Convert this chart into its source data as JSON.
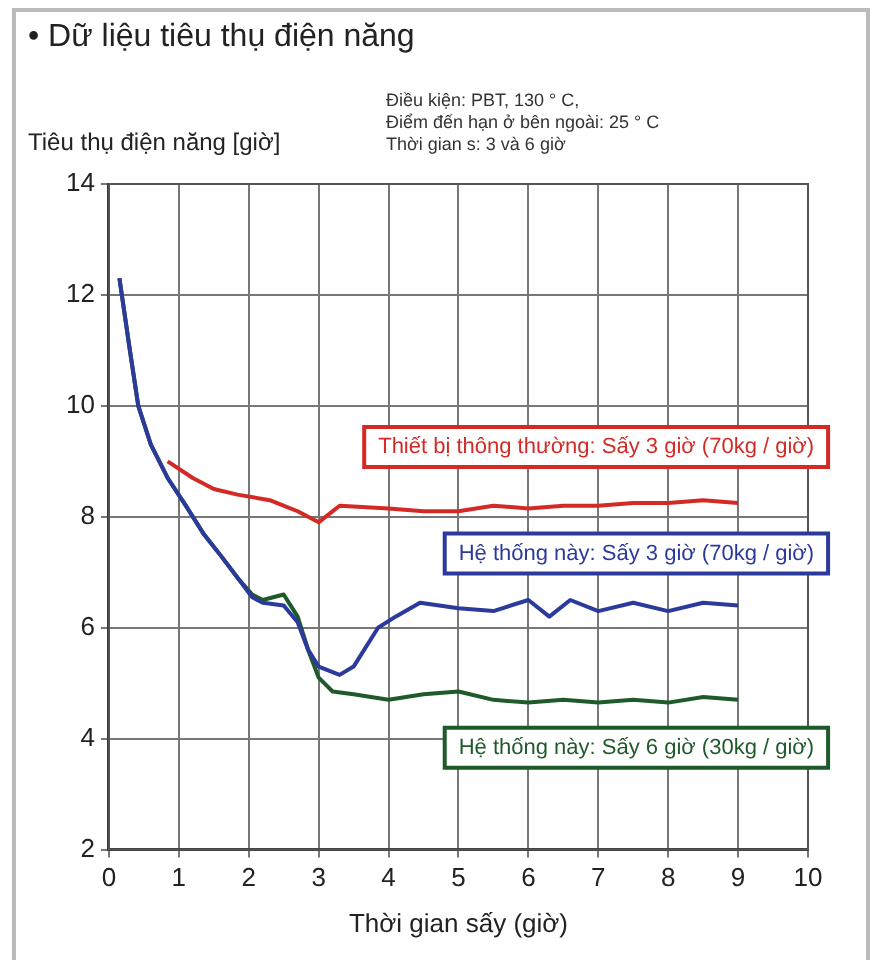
{
  "chart_data": {
    "type": "line",
    "title": "• Dữ liệu tiêu thụ điện năng",
    "ylabel": "Tiêu thụ điện năng [giờ]",
    "xlabel": "Thời gian sấy (giờ)",
    "annotations": [
      "Điều kiện: PBT, 130 ° C,",
      "Điểm đến hạn ở bên ngoài: 25 ° C",
      "Thời gian s: 3 và 6 giờ"
    ],
    "xlim": [
      0,
      10
    ],
    "xticks": [
      0,
      1,
      2,
      3,
      4,
      5,
      6,
      7,
      8,
      9,
      10
    ],
    "ylim": [
      2,
      14
    ],
    "yticks": [
      2,
      4,
      6,
      8,
      10,
      12,
      14
    ],
    "grid": true,
    "legend": false,
    "marker": "none",
    "line_style": "solid",
    "series": [
      {
        "name": "Thiết bị thông thường: Sấy 3 giờ (70kg / giờ)",
        "color": "#d42a26",
        "x": [
          0.84,
          1.2,
          1.5,
          1.84,
          2.3,
          2.7,
          3.0,
          3.3,
          4,
          4.5,
          5,
          5.5,
          6,
          6.5,
          7,
          7.5,
          8,
          8.5,
          9
        ],
        "values": [
          9.0,
          8.7,
          8.5,
          8.4,
          8.3,
          8.1,
          7.9,
          8.2,
          8.15,
          8.1,
          8.1,
          8.2,
          8.15,
          8.2,
          8.2,
          8.25,
          8.25,
          8.3,
          8.25
        ]
      },
      {
        "name": "Hệ thống này: Sấy 3 giờ (70kg / giờ)",
        "color": "#2b3a9b",
        "x": [
          0.15,
          0.3,
          0.42,
          0.6,
          0.84,
          1.1,
          1.35,
          1.6,
          1.84,
          2.05,
          2.2,
          2.5,
          2.7,
          2.85,
          3.0,
          3.3,
          3.5,
          3.85,
          4.1,
          4.45,
          5,
          5.5,
          6,
          6.3,
          6.6,
          7,
          7.5,
          8,
          8.5,
          9
        ],
        "values": [
          12.3,
          11,
          10,
          9.3,
          8.7,
          8.2,
          7.7,
          7.3,
          6.9,
          6.55,
          6.45,
          6.4,
          6.1,
          5.6,
          5.3,
          5.15,
          5.3,
          6.0,
          6.2,
          6.45,
          6.35,
          6.3,
          6.5,
          6.2,
          6.5,
          6.3,
          6.45,
          6.3,
          6.45,
          6.4
        ]
      },
      {
        "name": "Hệ thống này: Sấy 6 giờ (30kg / giờ)",
        "color": "#1e5a2a",
        "x": [
          0.15,
          0.3,
          0.42,
          0.6,
          0.84,
          1.1,
          1.35,
          1.6,
          1.84,
          2.05,
          2.2,
          2.5,
          2.7,
          2.85,
          3.0,
          3.2,
          3.5,
          4,
          4.5,
          5,
          5.5,
          6,
          6.5,
          7,
          7.5,
          8,
          8.5,
          9
        ],
        "values": [
          12.3,
          11,
          10,
          9.3,
          8.7,
          8.2,
          7.7,
          7.3,
          6.9,
          6.6,
          6.5,
          6.6,
          6.2,
          5.6,
          5.1,
          4.85,
          4.8,
          4.7,
          4.8,
          4.85,
          4.7,
          4.65,
          4.7,
          4.65,
          4.7,
          4.65,
          4.75,
          4.7
        ]
      }
    ]
  }
}
